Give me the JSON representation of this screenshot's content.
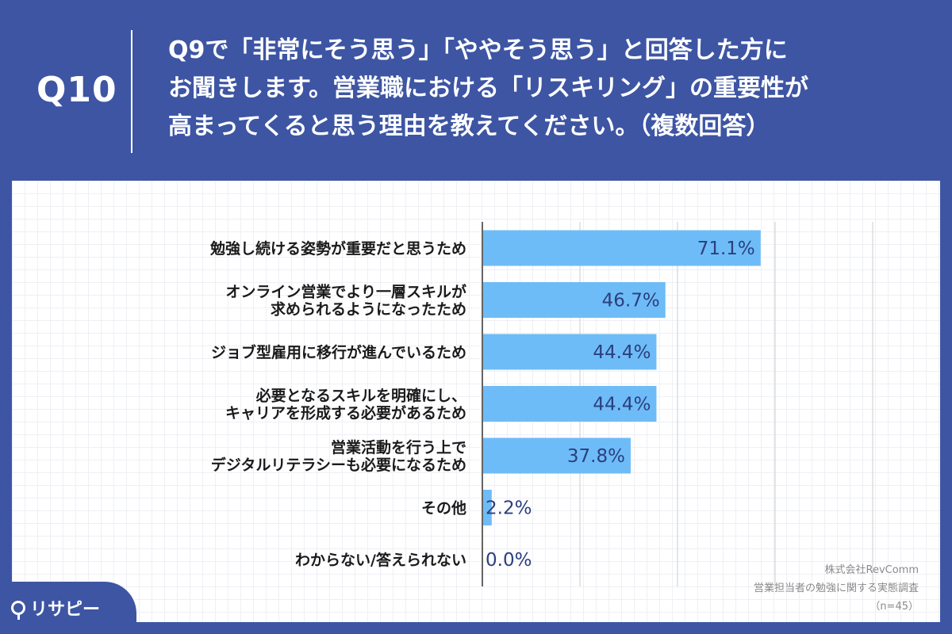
{
  "header": {
    "qnum": "Q10",
    "question": "Q9で「非常にそう思う」「ややそう思う」と回答した方に\nお聞きします。営業職における「リスキリング」の重要性が\n高まってくると思う理由を教えてください。（複数回答）"
  },
  "chart_data": {
    "type": "bar",
    "orientation": "horizontal",
    "categories": [
      [
        "勉強し続ける姿勢が重要だと思うため"
      ],
      [
        "オンライン営業でより一層スキルが",
        "求められるようになったため"
      ],
      [
        "ジョブ型雇用に移行が進んでいるため"
      ],
      [
        "必要となるスキルを明確にし、",
        "キャリアを形成する必要があるため"
      ],
      [
        "営業活動を行う上で",
        "デジタルリテラシーも必要になるため"
      ],
      [
        "その他"
      ],
      [
        "わからない/答えられない"
      ]
    ],
    "values": [
      71.1,
      46.7,
      44.4,
      44.4,
      37.8,
      2.2,
      0.0
    ],
    "value_labels": [
      "71.1%",
      "46.7%",
      "44.4%",
      "44.4%",
      "37.8%",
      "2.2%",
      "0.0%"
    ],
    "xlim": [
      0,
      100
    ],
    "grid": true,
    "bar_color": "#6ebcf7"
  },
  "source": {
    "line1": "株式会社RevComm",
    "line2": "営業担当者の勉強に関する実態調査",
    "line3": "（n=45）"
  },
  "logo": {
    "text": "リサピー"
  }
}
